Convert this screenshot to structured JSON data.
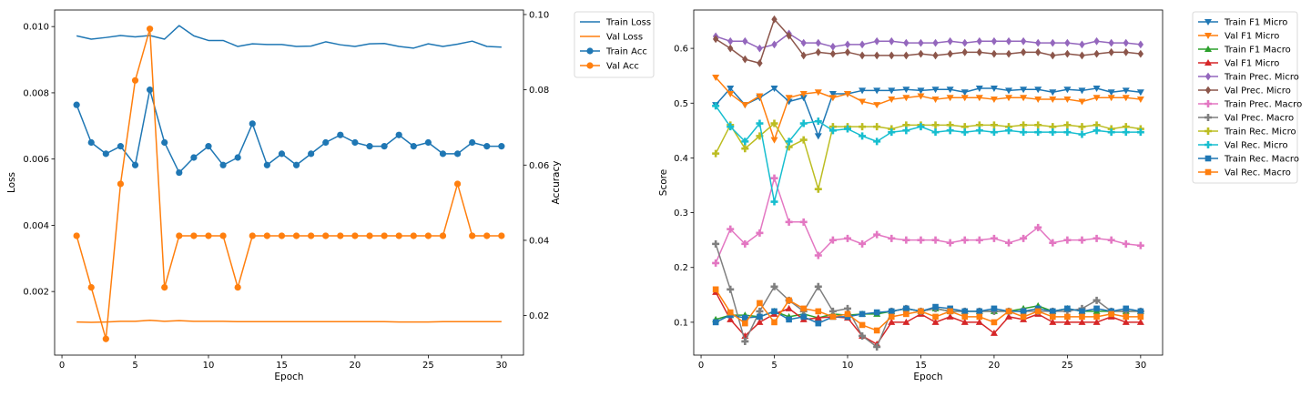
{
  "chart_data": [
    {
      "type": "line",
      "xlabel": "Epoch",
      "ylabel": "Loss",
      "y2label": "Accuracy",
      "xlim": [
        -0.5,
        31.5
      ],
      "xticks": [
        0,
        5,
        10,
        15,
        20,
        25,
        30
      ],
      "ylim": [
        8e-05,
        0.0105
      ],
      "yticks": [
        0.002,
        0.004,
        0.006,
        0.008,
        0.01
      ],
      "ytick_labels": [
        "0.002",
        "0.004",
        "0.006",
        "0.008",
        "0.010"
      ],
      "y2lim": [
        0.0095,
        0.1012
      ],
      "y2ticks": [
        0.02,
        0.04,
        0.06,
        0.08,
        0.1
      ],
      "y2tick_labels": [
        "0.02",
        "0.04",
        "0.06",
        "0.08",
        "0.10"
      ],
      "legend_position": "outside-right",
      "x": [
        1,
        2,
        3,
        4,
        5,
        6,
        7,
        8,
        9,
        10,
        11,
        12,
        13,
        14,
        15,
        16,
        17,
        18,
        19,
        20,
        21,
        22,
        23,
        24,
        25,
        26,
        27,
        28,
        29,
        30
      ],
      "series": [
        {
          "name": "Train Loss",
          "axis": "left",
          "color": "#1f77b4",
          "marker": "none",
          "values": [
            0.00972,
            0.00962,
            0.00967,
            0.00973,
            0.00969,
            0.00973,
            0.00962,
            0.01003,
            0.00972,
            0.00958,
            0.00958,
            0.0094,
            0.00948,
            0.00946,
            0.00946,
            0.0094,
            0.00941,
            0.00954,
            0.00945,
            0.0094,
            0.00948,
            0.00949,
            0.0094,
            0.00935,
            0.00948,
            0.0094,
            0.00947,
            0.00956,
            0.0094,
            0.00938
          ]
        },
        {
          "name": "Val Loss",
          "axis": "left",
          "color": "#ff7f0e",
          "marker": "none",
          "values": [
            0.00108,
            0.00107,
            0.00108,
            0.0011,
            0.0011,
            0.00113,
            0.0011,
            0.00112,
            0.0011,
            0.0011,
            0.0011,
            0.00109,
            0.00109,
            0.00109,
            0.00109,
            0.00109,
            0.00109,
            0.00109,
            0.00109,
            0.00109,
            0.00109,
            0.00109,
            0.00108,
            0.00108,
            0.00108,
            0.00109,
            0.00109,
            0.00109,
            0.00109,
            0.00109
          ]
        },
        {
          "name": "Train Acc",
          "axis": "right",
          "color": "#1f77b4",
          "marker": "circle",
          "values": [
            0.076,
            0.066,
            0.063,
            0.065,
            0.06,
            0.08,
            0.066,
            0.058,
            0.062,
            0.065,
            0.06,
            0.062,
            0.071,
            0.06,
            0.063,
            0.06,
            0.063,
            0.066,
            0.068,
            0.066,
            0.065,
            0.065,
            0.068,
            0.065,
            0.066,
            0.063,
            0.063,
            0.066,
            0.065,
            0.065
          ]
        },
        {
          "name": "Val Acc",
          "axis": "right",
          "color": "#ff7f0e",
          "marker": "circle",
          "values": [
            0.0412,
            0.0275,
            0.0138,
            0.055,
            0.0825,
            0.0962,
            0.0275,
            0.0412,
            0.0412,
            0.0412,
            0.0412,
            0.0275,
            0.0412,
            0.0412,
            0.0412,
            0.0412,
            0.0412,
            0.0412,
            0.0412,
            0.0412,
            0.0412,
            0.0412,
            0.0412,
            0.0412,
            0.0412,
            0.0412,
            0.055,
            0.0412,
            0.0412,
            0.0412
          ]
        }
      ]
    },
    {
      "type": "line",
      "xlabel": "Epoch",
      "ylabel": "Score",
      "xlim": [
        -0.5,
        31.5
      ],
      "xticks": [
        0,
        5,
        10,
        15,
        20,
        25,
        30
      ],
      "ylim": [
        0.04,
        0.67
      ],
      "yticks": [
        0.1,
        0.2,
        0.3,
        0.4,
        0.5,
        0.6
      ],
      "ytick_labels": [
        "0.1",
        "0.2",
        "0.3",
        "0.4",
        "0.5",
        "0.6"
      ],
      "legend_position": "outside-right",
      "x": [
        1,
        2,
        3,
        4,
        5,
        6,
        7,
        8,
        9,
        10,
        11,
        12,
        13,
        14,
        15,
        16,
        17,
        18,
        19,
        20,
        21,
        22,
        23,
        24,
        25,
        26,
        27,
        28,
        29,
        30
      ],
      "series": [
        {
          "name": "Train F1 Micro",
          "color": "#1f77b4",
          "marker": "tri_down",
          "values": [
            0.497,
            0.527,
            0.497,
            0.51,
            0.527,
            0.503,
            0.51,
            0.44,
            0.517,
            0.517,
            0.523,
            0.523,
            0.523,
            0.525,
            0.523,
            0.525,
            0.525,
            0.52,
            0.527,
            0.527,
            0.523,
            0.525,
            0.525,
            0.52,
            0.525,
            0.523,
            0.527,
            0.52,
            0.523,
            0.52
          ]
        },
        {
          "name": "Val F1 Micro",
          "color": "#ff7f0e",
          "marker": "tri_down",
          "values": [
            0.547,
            0.517,
            0.497,
            0.513,
            0.433,
            0.51,
            0.517,
            0.52,
            0.51,
            0.517,
            0.503,
            0.497,
            0.507,
            0.51,
            0.513,
            0.507,
            0.51,
            0.51,
            0.51,
            0.507,
            0.51,
            0.51,
            0.507,
            0.507,
            0.507,
            0.503,
            0.51,
            0.51,
            0.51,
            0.507
          ]
        },
        {
          "name": "Train F1 Macro",
          "color": "#2ca02c",
          "marker": "tri_up",
          "values": [
            0.105,
            0.113,
            0.113,
            0.11,
            0.12,
            0.11,
            0.115,
            0.108,
            0.115,
            0.113,
            0.115,
            0.115,
            0.12,
            0.125,
            0.12,
            0.125,
            0.12,
            0.12,
            0.12,
            0.12,
            0.12,
            0.125,
            0.13,
            0.12,
            0.125,
            0.12,
            0.12,
            0.12,
            0.12,
            0.12
          ]
        },
        {
          "name": "Val F1 Micro",
          "color": "#d62728",
          "marker": "tri_up",
          "values": [
            0.155,
            0.105,
            0.075,
            0.1,
            0.115,
            0.125,
            0.105,
            0.108,
            0.11,
            0.108,
            0.075,
            0.06,
            0.1,
            0.1,
            0.115,
            0.1,
            0.11,
            0.1,
            0.1,
            0.08,
            0.11,
            0.105,
            0.115,
            0.1,
            0.1,
            0.1,
            0.1,
            0.11,
            0.1,
            0.1
          ]
        },
        {
          "name": "Train Prec. Micro",
          "color": "#9467bd",
          "marker": "diamond",
          "values": [
            0.622,
            0.613,
            0.613,
            0.6,
            0.607,
            0.627,
            0.61,
            0.61,
            0.603,
            0.607,
            0.607,
            0.613,
            0.613,
            0.61,
            0.61,
            0.61,
            0.613,
            0.61,
            0.613,
            0.613,
            0.613,
            0.613,
            0.61,
            0.61,
            0.61,
            0.607,
            0.613,
            0.61,
            0.61,
            0.607
          ]
        },
        {
          "name": "Val Prec. Micro",
          "color": "#8c564b",
          "marker": "diamond",
          "values": [
            0.617,
            0.6,
            0.58,
            0.573,
            0.653,
            0.623,
            0.587,
            0.593,
            0.59,
            0.593,
            0.587,
            0.587,
            0.587,
            0.587,
            0.59,
            0.587,
            0.59,
            0.593,
            0.593,
            0.59,
            0.59,
            0.593,
            0.593,
            0.587,
            0.59,
            0.587,
            0.59,
            0.593,
            0.593,
            0.59
          ]
        },
        {
          "name": "Train Prec. Macro",
          "color": "#e377c2",
          "marker": "plus",
          "values": [
            0.208,
            0.27,
            0.243,
            0.263,
            0.363,
            0.283,
            0.283,
            0.222,
            0.25,
            0.253,
            0.243,
            0.26,
            0.253,
            0.25,
            0.25,
            0.25,
            0.245,
            0.25,
            0.25,
            0.253,
            0.245,
            0.253,
            0.273,
            0.245,
            0.25,
            0.25,
            0.253,
            0.25,
            0.243,
            0.24
          ]
        },
        {
          "name": "Val Prec. Macro",
          "color": "#7f7f7f",
          "marker": "plus",
          "values": [
            0.243,
            0.16,
            0.065,
            0.12,
            0.165,
            0.14,
            0.12,
            0.165,
            0.12,
            0.125,
            0.075,
            0.055,
            0.12,
            0.125,
            0.12,
            0.125,
            0.12,
            0.12,
            0.12,
            0.12,
            0.12,
            0.12,
            0.12,
            0.12,
            0.12,
            0.125,
            0.14,
            0.12,
            0.12,
            0.12
          ]
        },
        {
          "name": "Train Rec. Micro",
          "color": "#bcbd22",
          "marker": "plus",
          "values": [
            0.408,
            0.46,
            0.417,
            0.44,
            0.463,
            0.42,
            0.433,
            0.343,
            0.457,
            0.457,
            0.457,
            0.457,
            0.453,
            0.46,
            0.46,
            0.46,
            0.46,
            0.457,
            0.46,
            0.46,
            0.457,
            0.46,
            0.46,
            0.457,
            0.46,
            0.457,
            0.46,
            0.453,
            0.457,
            0.453
          ]
        },
        {
          "name": "Val Rec. Micro",
          "color": "#17becf",
          "marker": "plus",
          "values": [
            0.495,
            0.457,
            0.43,
            0.463,
            0.32,
            0.43,
            0.463,
            0.467,
            0.45,
            0.453,
            0.44,
            0.43,
            0.447,
            0.45,
            0.457,
            0.447,
            0.45,
            0.447,
            0.45,
            0.447,
            0.45,
            0.447,
            0.447,
            0.447,
            0.447,
            0.443,
            0.45,
            0.447,
            0.447,
            0.447
          ]
        },
        {
          "name": "Train Rec. Macro",
          "color": "#1f77b4",
          "marker": "square",
          "values": [
            0.1,
            0.113,
            0.108,
            0.11,
            0.12,
            0.105,
            0.11,
            0.098,
            0.11,
            0.11,
            0.115,
            0.118,
            0.12,
            0.125,
            0.12,
            0.128,
            0.125,
            0.12,
            0.12,
            0.125,
            0.12,
            0.12,
            0.125,
            0.12,
            0.125,
            0.12,
            0.125,
            0.12,
            0.125,
            0.12
          ]
        },
        {
          "name": "Val Rec. Macro",
          "color": "#ff7f0e",
          "marker": "square",
          "values": [
            0.16,
            0.118,
            0.098,
            0.135,
            0.1,
            0.14,
            0.125,
            0.12,
            0.11,
            0.115,
            0.095,
            0.085,
            0.11,
            0.115,
            0.12,
            0.11,
            0.12,
            0.11,
            0.11,
            0.1,
            0.12,
            0.11,
            0.12,
            0.11,
            0.11,
            0.11,
            0.11,
            0.115,
            0.11,
            0.11
          ]
        }
      ]
    }
  ]
}
